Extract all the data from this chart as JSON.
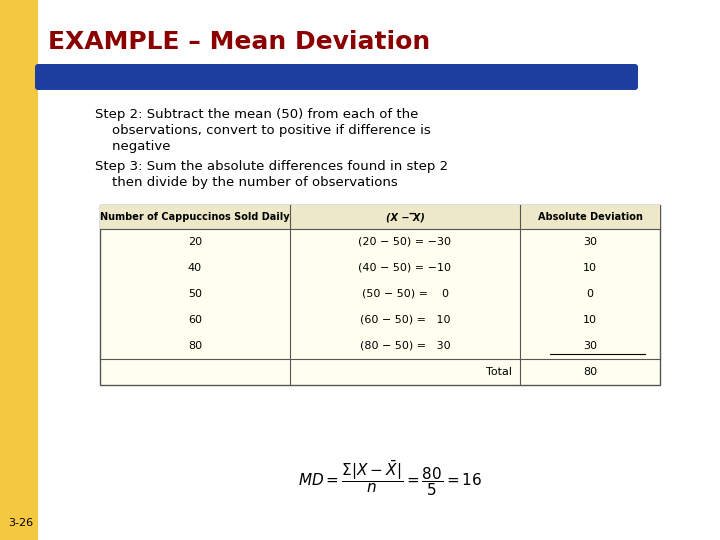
{
  "title": "EXAMPLE – Mean Deviation",
  "title_color": "#8B0000",
  "title_fontsize": 18,
  "bg_color": "#FFFDE8",
  "left_bar_color": "#F5C842",
  "left_bar_top_color": "#F5C842",
  "blue_bar_color": "#1E3FA0",
  "step2_line1": "Step 2: Subtract the mean (50) from each of the",
  "step2_line2": "    observations, convert to positive if difference is",
  "step2_line3": "    negative",
  "step3_line1": "Step 3: Sum the absolute differences found in step 2",
  "step3_line2": "    then divide by the number of observations",
  "table_header": [
    "Number of Cappuccinos Sold Daily",
    "(X − ̅X)",
    "Absolute Deviation"
  ],
  "table_rows": [
    [
      "20",
      "(20 − 50) = −30",
      "30"
    ],
    [
      "40",
      "(40 − 50) = −10",
      "10"
    ],
    [
      "50",
      "(50 − 50) =    0",
      "0"
    ],
    [
      "60",
      "(60 − 50) =   10",
      "10"
    ],
    [
      "80",
      "(80 − 50) =   30",
      "30"
    ]
  ],
  "page_label": "3-26",
  "table_bg": "#FFFFF0",
  "table_border": "#555555",
  "text_color": "#000000"
}
